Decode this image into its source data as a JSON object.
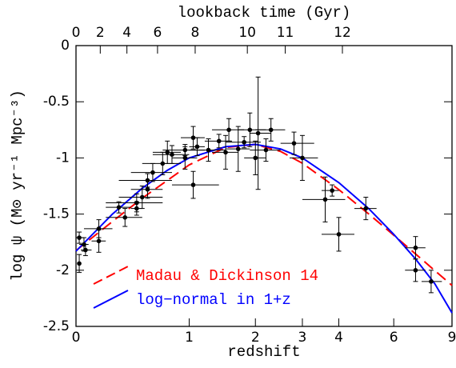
{
  "chart_data": {
    "type": "scatter",
    "x_label": "redshift",
    "y_label": "log ψ (M⊙ yr⁻¹ Mpc⁻³)",
    "xscale": "log1p",
    "xlim": [
      0,
      9
    ],
    "ylim": [
      -2.5,
      0
    ],
    "xticks": [
      0,
      1,
      2,
      3,
      4,
      6,
      9
    ],
    "yticks": [
      0,
      -0.5,
      -1,
      -1.5,
      -2,
      -2.5
    ],
    "top_axis": {
      "label": "lookback time (Gyr)",
      "ticks": [
        0,
        2,
        4,
        6,
        8,
        10,
        11,
        12
      ],
      "cosmology": {
        "H0": 70,
        "Om": 0.3
      }
    },
    "legend": "lower left",
    "points": {
      "color": "#000000",
      "x": [
        0.02,
        0.02,
        0.05,
        0.06,
        0.15,
        0.15,
        0.3,
        0.35,
        0.45,
        0.45,
        0.5,
        0.55,
        0.55,
        0.6,
        0.7,
        0.75,
        0.8,
        0.95,
        0.95,
        1.05,
        1.05,
        1.1,
        1.25,
        1.4,
        1.5,
        1.55,
        1.7,
        1.8,
        1.9,
        2.0,
        2.05,
        2.2,
        2.3,
        2.8,
        3.0,
        3.6,
        3.8,
        4.0,
        4.9,
        7.0,
        7.0,
        7.8
      ],
      "values": [
        -1.94,
        -1.71,
        -1.77,
        -1.82,
        -1.74,
        -1.63,
        -1.44,
        -1.53,
        -1.45,
        -1.4,
        -1.35,
        -1.28,
        -1.2,
        -1.13,
        -1.05,
        -0.95,
        -0.97,
        -1.0,
        -0.93,
        -1.24,
        -0.82,
        -0.9,
        -0.93,
        -0.85,
        -0.95,
        -0.75,
        -0.92,
        -0.86,
        -0.75,
        -1.0,
        -0.78,
        -0.93,
        -0.75,
        -0.87,
        -1.0,
        -1.37,
        -1.29,
        -1.68,
        -1.45,
        -1.8,
        -2.0,
        -2.1
      ],
      "yerr": [
        0.08,
        0.05,
        0.06,
        0.05,
        0.1,
        0.08,
        0.05,
        0.08,
        0.06,
        0.08,
        0.1,
        0.08,
        0.06,
        0.08,
        0.1,
        0.1,
        0.08,
        0.1,
        0.05,
        0.12,
        0.1,
        0.08,
        0.1,
        0.06,
        0.15,
        0.1,
        0.2,
        0.05,
        0.15,
        0.15,
        0.5,
        0.1,
        0.1,
        0.1,
        0.2,
        0.2,
        0.05,
        0.15,
        0.1,
        0.1,
        0.1,
        0.1
      ],
      "x_low": [
        0.01,
        0,
        0.02,
        0.03,
        0.1,
        0.05,
        0.2,
        0.2,
        0.4,
        0.2,
        0.3,
        0.4,
        0.3,
        0.4,
        0.5,
        0.6,
        0.6,
        0.8,
        0.7,
        0.8,
        0.9,
        1.0,
        1.0,
        1.2,
        1.3,
        1.3,
        1.5,
        1.5,
        1.7,
        1.8,
        1.9,
        1.9,
        2.0,
        2.5,
        2.7,
        3.0,
        3.5,
        3.5,
        4.5,
        6.5,
        6.5,
        7.3
      ],
      "x_high": [
        0.03,
        0.05,
        0.08,
        0.1,
        0.2,
        0.25,
        0.4,
        0.5,
        0.5,
        0.7,
        0.7,
        0.7,
        0.8,
        0.8,
        0.9,
        0.9,
        1.0,
        1.1,
        1.2,
        1.4,
        1.2,
        1.2,
        1.5,
        1.6,
        1.7,
        1.8,
        1.9,
        2.1,
        2.2,
        2.2,
        2.3,
        2.5,
        2.6,
        3.3,
        3.4,
        4.2,
        4.0,
        4.5,
        5.3,
        7.5,
        7.5,
        8.4
      ]
    },
    "series": [
      {
        "name": "Madau & Dickinson 14",
        "color": "#ff0000",
        "dash": true,
        "x": [
          0,
          0.25,
          0.5,
          1,
          1.5,
          2,
          2.5,
          3,
          4,
          5,
          6,
          7,
          8,
          9
        ],
        "values": [
          -1.825,
          -1.566,
          -1.359,
          -1.062,
          -0.907,
          -0.88,
          -0.942,
          -1.047,
          -1.282,
          -1.498,
          -1.688,
          -1.855,
          -2.003,
          -2.135
        ]
      },
      {
        "name": "log−normal in 1+z",
        "color": "#0000ff",
        "dash": false,
        "x": [
          0,
          0.25,
          0.5,
          0.75,
          1,
          1.5,
          2,
          2.5,
          3,
          4,
          5,
          6,
          7,
          8,
          9
        ],
        "values": [
          -1.83,
          -1.5,
          -1.27,
          -1.11,
          -1.0,
          -0.9,
          -0.88,
          -0.92,
          -1.0,
          -1.22,
          -1.45,
          -1.68,
          -1.9,
          -2.12,
          -2.38
        ]
      }
    ]
  }
}
